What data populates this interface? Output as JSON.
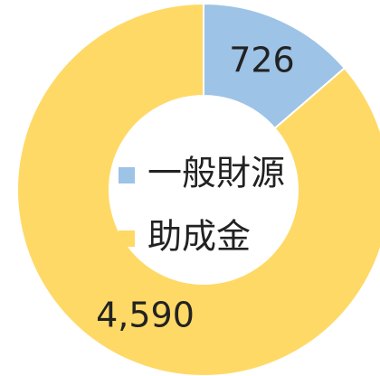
{
  "chart_data": {
    "type": "donut",
    "categories": [
      "一般財源",
      "助成金"
    ],
    "values": [
      726,
      4590
    ],
    "value_labels": [
      "726",
      "4,590"
    ],
    "colors": [
      "#9dc3e6",
      "#ffd966"
    ],
    "legend": "center"
  }
}
